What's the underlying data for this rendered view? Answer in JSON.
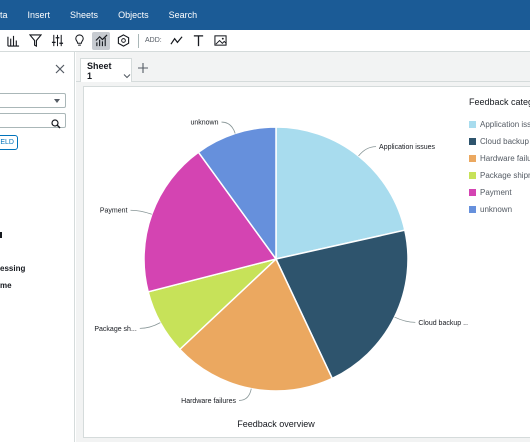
{
  "menubar": {
    "items": [
      {
        "label": "ata"
      },
      {
        "label": "Insert"
      },
      {
        "label": "Sheets"
      },
      {
        "label": "Objects"
      },
      {
        "label": "Search"
      }
    ]
  },
  "toolbar": {
    "add_label": "ADD:",
    "icons": [
      "bar-chart-icon",
      "filter-icon",
      "parameters-icon",
      "insights-icon",
      "visualize-icon",
      "themes-icon",
      "line-icon",
      "text-icon",
      "image-icon"
    ]
  },
  "left_panel": {
    "dataset_value": "k",
    "field_button_label": "ELD",
    "fields": [
      {
        "label": "essing"
      },
      {
        "label": "me"
      }
    ]
  },
  "sheets": {
    "active_tab": "Sheet 1"
  },
  "chart_data": {
    "type": "pie",
    "title": "Feedback overview",
    "legend_title": "Feedback categ",
    "legend_position": "right",
    "slices": [
      {
        "name": "Application issues",
        "legend": "Application issu",
        "label": "Application issues",
        "value": 21.5,
        "color": "#a8dcee"
      },
      {
        "name": "Cloud backup issues",
        "legend": "Cloud backup i",
        "label": "Cloud backup ...",
        "value": 21.5,
        "color": "#2e546d"
      },
      {
        "name": "Hardware failures",
        "legend": "Hardware failu",
        "label": "Hardware failures",
        "value": 20.0,
        "color": "#eba860"
      },
      {
        "name": "Package shipment",
        "legend": "Package shipm",
        "label": "Package sh...",
        "value": 8.0,
        "color": "#c7e259"
      },
      {
        "name": "Payment",
        "legend": "Payment",
        "label": "Payment",
        "value": 19.0,
        "color": "#d444b2"
      },
      {
        "name": "unknown",
        "legend": "unknown",
        "label": "unknown",
        "value": 10.0,
        "color": "#6690dc"
      }
    ]
  }
}
